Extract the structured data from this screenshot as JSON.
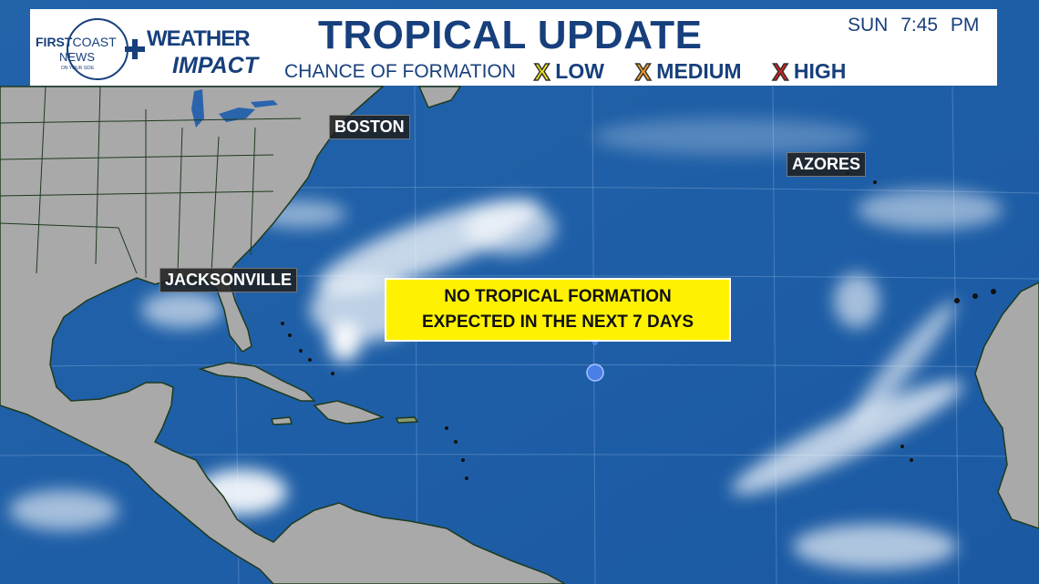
{
  "header": {
    "logo": {
      "brand": "FIRSTCOAST NEWS",
      "tagline": "ON YOUR SIDE",
      "product": "WEATHER IMPACT"
    },
    "title": "TROPICAL UPDATE",
    "day": "SUN",
    "time": "7:45 PM",
    "legend": {
      "label": "CHANCE OF FORMATION",
      "items": [
        {
          "label": "LOW",
          "color": "#f2e21b",
          "icon": "x-mark-icon"
        },
        {
          "label": "MEDIUM",
          "color": "#f2a12a",
          "icon": "x-mark-icon"
        },
        {
          "label": "HIGH",
          "color": "#d92020",
          "icon": "x-mark-icon"
        }
      ]
    }
  },
  "map": {
    "cities": [
      "BOSTON",
      "AZORES",
      "JACKSONVILLE"
    ],
    "notice": {
      "line1": "NO TROPICAL FORMATION",
      "line2": "EXPECTED IN THE NEXT 7 DAYS"
    },
    "colors": {
      "ocean": "#1d5ea8",
      "land": "#a9a9a9",
      "notice_bg": "#fff200"
    }
  }
}
